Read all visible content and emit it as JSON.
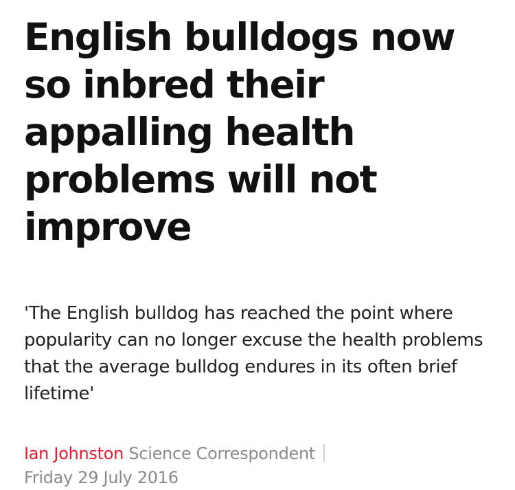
{
  "article": {
    "headline": "English bulldogs now so inbred their appalling health problems will not improve",
    "standfirst": "'The English bulldog has reached the point where popularity can no longer excuse the health problems that the average bulldog endures in its often brief lifetime'",
    "byline": {
      "author": "Ian Johnston",
      "role": "Science Correspondent",
      "date": "Friday 29 July 2016"
    }
  },
  "colors": {
    "author_link": "#ec1a2e",
    "meta_text": "#8a8a8a",
    "headline_text": "#111111"
  }
}
